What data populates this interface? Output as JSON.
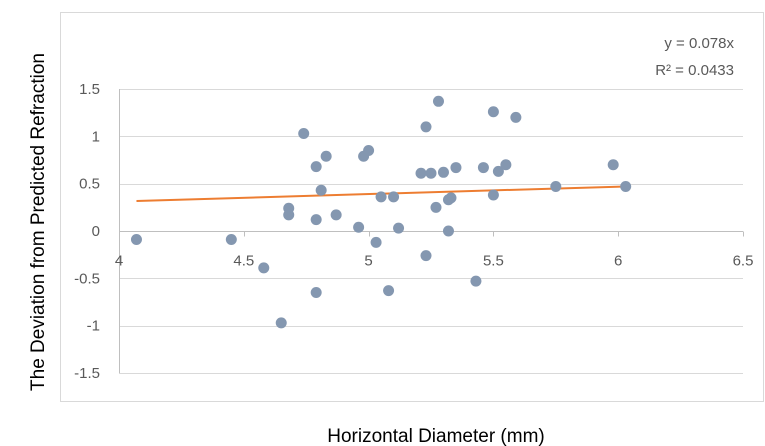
{
  "chart_data": {
    "type": "scatter",
    "title": "",
    "xlabel": "Horizontal Diameter (mm)",
    "ylabel": "The Deviation from Predicted Refraction",
    "xlim": [
      4,
      6.5
    ],
    "ylim": [
      -1.5,
      1.5
    ],
    "xticks": [
      "4",
      "4.5",
      "5",
      "5.5",
      "6",
      "6.5"
    ],
    "yticks": [
      "1.5",
      "1",
      "0.5",
      "0",
      "-0.5",
      "-1",
      "-1.5"
    ],
    "xtick_values": [
      4,
      4.5,
      5,
      5.5,
      6,
      6.5
    ],
    "ytick_values": [
      1.5,
      1,
      0.5,
      0,
      -0.5,
      -1,
      -1.5
    ],
    "grid": "horizontal",
    "legend": "none",
    "points": [
      {
        "x": 4.07,
        "y": -0.09
      },
      {
        "x": 4.45,
        "y": -0.09
      },
      {
        "x": 4.58,
        "y": -0.39
      },
      {
        "x": 4.65,
        "y": -0.97
      },
      {
        "x": 4.68,
        "y": 0.24
      },
      {
        "x": 4.68,
        "y": 0.17
      },
      {
        "x": 4.74,
        "y": 1.03
      },
      {
        "x": 4.79,
        "y": 0.68
      },
      {
        "x": 4.79,
        "y": 0.12
      },
      {
        "x": 4.79,
        "y": -0.65
      },
      {
        "x": 4.81,
        "y": 0.43
      },
      {
        "x": 4.83,
        "y": 0.79
      },
      {
        "x": 4.87,
        "y": 0.17
      },
      {
        "x": 4.96,
        "y": 0.04
      },
      {
        "x": 4.98,
        "y": 0.79
      },
      {
        "x": 5.0,
        "y": 0.85
      },
      {
        "x": 5.03,
        "y": -0.12
      },
      {
        "x": 5.05,
        "y": 0.36
      },
      {
        "x": 5.08,
        "y": -0.63
      },
      {
        "x": 5.1,
        "y": 0.36
      },
      {
        "x": 5.12,
        "y": 0.03
      },
      {
        "x": 5.21,
        "y": 0.61
      },
      {
        "x": 5.23,
        "y": 1.1
      },
      {
        "x": 5.23,
        "y": -0.26
      },
      {
        "x": 5.25,
        "y": 0.61
      },
      {
        "x": 5.27,
        "y": 0.25
      },
      {
        "x": 5.28,
        "y": 1.37
      },
      {
        "x": 5.3,
        "y": 0.62
      },
      {
        "x": 5.32,
        "y": 0.33
      },
      {
        "x": 5.32,
        "y": 0.0
      },
      {
        "x": 5.33,
        "y": 0.35
      },
      {
        "x": 5.35,
        "y": 0.67
      },
      {
        "x": 5.43,
        "y": -0.53
      },
      {
        "x": 5.46,
        "y": 0.67
      },
      {
        "x": 5.5,
        "y": 1.26
      },
      {
        "x": 5.5,
        "y": 0.38
      },
      {
        "x": 5.52,
        "y": 0.63
      },
      {
        "x": 5.55,
        "y": 0.7
      },
      {
        "x": 5.59,
        "y": 1.2
      },
      {
        "x": 5.75,
        "y": 0.47
      },
      {
        "x": 5.98,
        "y": 0.7
      },
      {
        "x": 6.03,
        "y": 0.47
      }
    ],
    "trendline": {
      "type": "linear",
      "slope": 0.078,
      "intercept": 0,
      "x_start": 4.07,
      "x_end": 6.03,
      "color": "#ED7D31"
    },
    "annotations": [
      "y = 0.078x",
      "R² = 0.0433"
    ],
    "colors": {
      "points": "#8497B0",
      "trendline": "#ED7D31",
      "grid": "#D9D9D9",
      "axis": "#BFBFBF",
      "text": "#595959",
      "frame": "#D9D9D9"
    }
  }
}
